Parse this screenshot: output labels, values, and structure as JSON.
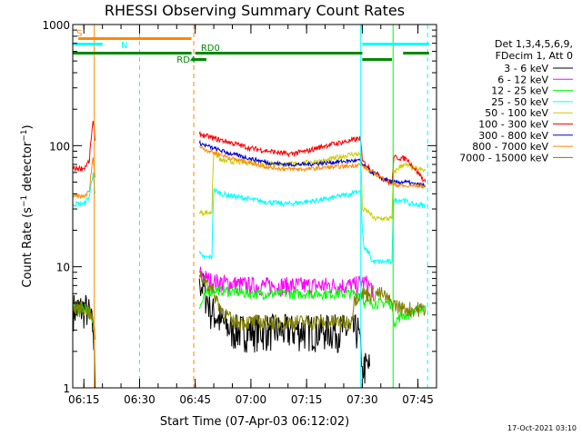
{
  "chart_data": {
    "type": "line",
    "title": "RHESSI Observing Summary Count Rates",
    "xlabel": "Start Time (07-Apr-03 06:12:02)",
    "ylabel": "Count Rate (s⁻¹ detector⁻¹)",
    "ylabel_parts": [
      "Count Rate (s",
      "−1",
      " detector",
      "−1",
      ")"
    ],
    "yscale": "log",
    "xlim": [
      372,
      470
    ],
    "ylim": [
      1,
      1000
    ],
    "x_ticks": [
      {
        "t": 375,
        "label": "06:15"
      },
      {
        "t": 390,
        "label": "06:30"
      },
      {
        "t": 405,
        "label": "06:45"
      },
      {
        "t": 420,
        "label": "07:00"
      },
      {
        "t": 435,
        "label": "07:15"
      },
      {
        "t": 450,
        "label": "07:30"
      },
      {
        "t": 465,
        "label": "07:45"
      }
    ],
    "y_ticks": [
      {
        "v": 1,
        "label": "1"
      },
      {
        "v": 10,
        "label": "10"
      },
      {
        "v": 100,
        "label": "100"
      },
      {
        "v": 1000,
        "label": "1000"
      }
    ],
    "legend_header": [
      "Det 1,3,4,5,6,9,",
      "FDecim 1, Att 0"
    ],
    "legend_position": "right",
    "series": [
      {
        "name": "3 - 6 keV",
        "color": "#000000",
        "noise": 0.35,
        "x": [
          372,
          376,
          377.5,
          378,
          378.1,
          406,
          406.1,
          409,
          412,
          415,
          425,
          440,
          449,
          449.8,
          450,
          452,
          452.1
        ],
        "y": [
          4.5,
          4.5,
          3,
          1,
          null,
          null,
          8,
          4.5,
          3.5,
          3,
          3,
          3,
          3,
          1.5,
          1.5,
          1.5,
          null
        ]
      },
      {
        "name": "6 - 12 keV",
        "color": "#ff00ff",
        "noise": 0.18,
        "x": [
          406,
          406.1,
          408,
          410,
          420,
          435,
          448,
          450,
          450.5,
          452,
          453
        ],
        "y": [
          null,
          9,
          8,
          7.5,
          7,
          7,
          7,
          7.5,
          7.5,
          7,
          6.5
        ]
      },
      {
        "name": "12 - 25 keV",
        "color": "#00ff00",
        "noise": 0.1,
        "x": [
          372,
          376,
          377.5,
          378,
          378.1,
          406,
          406.1,
          408,
          410,
          420,
          435,
          448,
          450,
          450.5,
          452,
          458,
          458.5,
          461,
          462,
          466,
          467
        ],
        "y": [
          4.5,
          4.5,
          3.5,
          3,
          null,
          null,
          4.5,
          6,
          6.5,
          6,
          6,
          6,
          6,
          5,
          5,
          5,
          3.5,
          4,
          4,
          4.5,
          4.5
        ]
      },
      {
        "name": "25 - 50 keV",
        "color": "#00ffff",
        "noise": 0.05,
        "x": [
          372,
          375,
          376.5,
          377.5,
          378,
          378.1,
          406,
          406.1,
          407,
          409.5,
          410,
          412,
          420,
          425,
          430,
          440,
          447,
          448,
          449.5,
          450,
          450.5,
          452,
          452.5,
          458,
          458.5,
          461,
          463,
          467
        ],
        "y": [
          33,
          33,
          38,
          60,
          40,
          null,
          null,
          13,
          12,
          12,
          43,
          40,
          36,
          34,
          33,
          36,
          40,
          42,
          42,
          20,
          14,
          13,
          11,
          11,
          35,
          36,
          33,
          32
        ]
      },
      {
        "name": "50 - 100 keV",
        "color": "#cccc00",
        "noise": 0.05,
        "x": [
          406,
          406.1,
          409.5,
          410,
          412,
          420,
          430,
          440,
          447,
          449.5,
          450,
          452,
          453,
          458,
          458.5,
          461,
          464,
          467
        ],
        "y": [
          null,
          28,
          28,
          88,
          75,
          72,
          70,
          75,
          85,
          85,
          30,
          28,
          25,
          25,
          60,
          70,
          65,
          62
        ]
      },
      {
        "name": "100 - 300 keV",
        "color": "#ff0000",
        "noise": 0.05,
        "x": [
          372,
          375,
          376.5,
          377.5,
          378,
          378.1,
          406,
          406.1,
          408,
          410,
          415,
          420,
          425,
          430,
          435,
          440,
          447,
          449.5,
          450,
          452,
          455,
          458,
          458.5,
          462,
          464,
          467
        ],
        "y": [
          65,
          65,
          75,
          160,
          110,
          null,
          null,
          125,
          120,
          115,
          105,
          95,
          90,
          85,
          90,
          100,
          110,
          115,
          75,
          65,
          55,
          48,
          80,
          78,
          65,
          50
        ]
      },
      {
        "name": "300 - 800 keV",
        "color": "#0000cc",
        "noise": 0.04,
        "x": [
          406,
          406.1,
          408,
          410,
          415,
          420,
          425,
          430,
          435,
          440,
          447,
          449.5,
          450,
          452,
          455,
          458,
          458.5,
          462,
          464,
          467
        ],
        "y": [
          null,
          105,
          100,
          95,
          85,
          78,
          72,
          70,
          70,
          72,
          75,
          75,
          70,
          62,
          55,
          50,
          50,
          50,
          48,
          47
        ]
      },
      {
        "name": "800 - 7000 keV",
        "color": "#ff8800",
        "noise": 0.04,
        "x": [
          372,
          375,
          376.5,
          377.5,
          378,
          378.1,
          406,
          406.1,
          408,
          410,
          415,
          420,
          425,
          430,
          435,
          440,
          447,
          449.5,
          450,
          452,
          455,
          458,
          462,
          464,
          467
        ],
        "y": [
          38,
          38,
          42,
          80,
          55,
          null,
          null,
          98,
          92,
          88,
          78,
          72,
          66,
          64,
          64,
          66,
          68,
          70,
          68,
          62,
          55,
          48,
          46,
          47,
          46
        ]
      },
      {
        "name": "7000 - 15000 keV",
        "color": "#808000",
        "noise": 0.15,
        "x": [
          372,
          376,
          377.5,
          378,
          378.1,
          406,
          406.1,
          408,
          410,
          412,
          415,
          425,
          440,
          447,
          448,
          449.5,
          450,
          452,
          455,
          458,
          461,
          462,
          466,
          467
        ],
        "y": [
          4.5,
          4.5,
          3.5,
          2.5,
          null,
          null,
          8.5,
          7.5,
          6,
          4.5,
          3.5,
          3.5,
          3.5,
          3.5,
          5.5,
          6,
          6,
          6,
          6,
          5,
          4.5,
          4.5,
          4.5,
          4.5
        ]
      }
    ],
    "flag_bars": [
      {
        "label": "S",
        "color": "#ff8800",
        "label_t": 373,
        "segments": [
          [
            373.5,
            404
          ]
        ],
        "level": "top"
      },
      {
        "label": "N",
        "color": "#00ffff",
        "label_t": 385,
        "segments": [
          [
            372,
            380
          ],
          [
            450,
            468
          ]
        ],
        "level": "second"
      },
      {
        "label": "RD0",
        "color": "#008800",
        "label_t": 406.5,
        "segments": [
          [
            372,
            404
          ],
          [
            405,
            450
          ],
          [
            461,
            468
          ]
        ],
        "level": "third"
      },
      {
        "label": "RD4",
        "color": "#008800",
        "label_t": 400,
        "segments": [
          [
            404,
            408
          ],
          [
            450,
            458
          ]
        ],
        "level": "fourth"
      }
    ],
    "vertical_markers": [
      {
        "t": 377.8,
        "color": "#ff8800",
        "style": "solid"
      },
      {
        "t": 390,
        "color": "#00ffff",
        "style": "dashed"
      },
      {
        "t": 404.6,
        "color": "#ff8800",
        "style": "dashed"
      },
      {
        "t": 449.6,
        "color": "#00ffff",
        "style": "solid"
      },
      {
        "t": 458.3,
        "color": "#00ff00",
        "style": "solid"
      },
      {
        "t": 467.6,
        "color": "#00ffff",
        "style": "dashed"
      }
    ]
  },
  "footer_date": "17-Oct-2021 03:10"
}
